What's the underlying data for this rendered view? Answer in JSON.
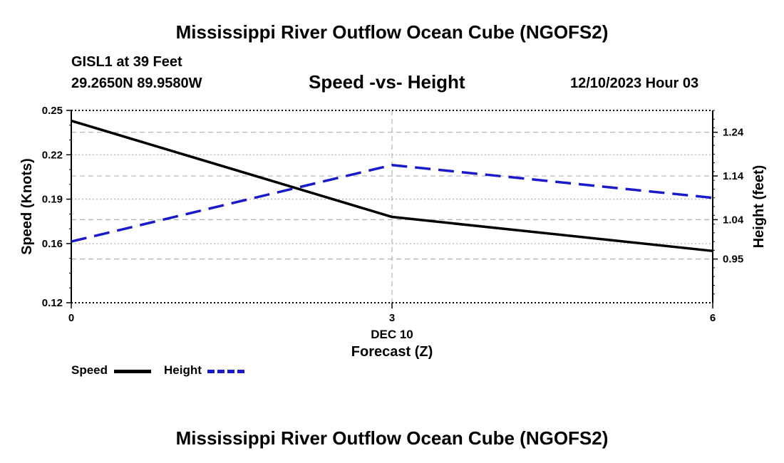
{
  "header": {
    "title": "Mississippi River Outflow Ocean Cube (NGOFS2)",
    "station": "GISL1 at 39 Feet",
    "coords": "29.2650N  89.9580W",
    "chart_title": "Speed -vs- Height",
    "datetime": "12/10/2023 Hour 03"
  },
  "footer": {
    "title": "Mississippi River Outflow Ocean Cube (NGOFS2)"
  },
  "legend": {
    "speed_label": "Speed",
    "height_label": "Height"
  },
  "colors": {
    "speed": "#000000",
    "height": "#1a1acc",
    "grid": "#b0b0b0"
  },
  "chart_data": {
    "type": "line",
    "title": "Speed -vs- Height",
    "xlabel": "Forecast (Z)",
    "x_date_label": "DEC 10",
    "x": [
      0,
      3,
      6
    ],
    "x_tick_labels": [
      "0",
      "3",
      "6"
    ],
    "xlim": [
      0,
      6
    ],
    "y_left": {
      "label": "Speed (Knots)",
      "lim": [
        0.12,
        0.25
      ],
      "ticks": [
        0.12,
        0.16,
        0.19,
        0.22,
        0.25
      ],
      "tick_labels": [
        "0.12",
        "0.16",
        "0.19",
        "0.22",
        "0.25"
      ]
    },
    "y_right": {
      "label": "Height (feet)",
      "lim": [
        0.85,
        1.29
      ],
      "ticks": [
        0.95,
        1.04,
        1.14,
        1.24
      ],
      "tick_labels": [
        "0.95",
        "1.04",
        "1.14",
        "1.24"
      ]
    },
    "series": [
      {
        "name": "Speed",
        "axis": "left",
        "style": "solid",
        "values": [
          0.243,
          0.178,
          0.155
        ]
      },
      {
        "name": "Height",
        "axis": "right",
        "style": "dashed",
        "values": [
          0.99,
          1.165,
          1.09
        ]
      }
    ]
  }
}
